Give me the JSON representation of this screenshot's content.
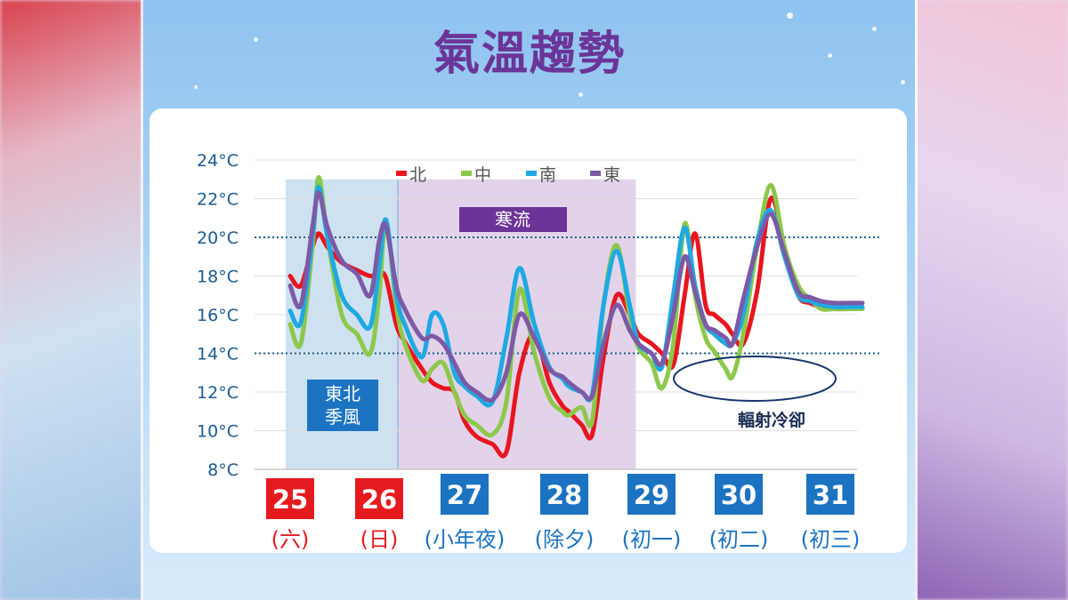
{
  "title": "氣溫趨勢",
  "colors": {
    "north": "#e8151f",
    "central": "#8cc84b",
    "south": "#1ea9e3",
    "east": "#7c5aa6",
    "date_box": "#1b73c1",
    "weekend_box": "#e51a1f",
    "monsoon_band": "#c6dcef",
    "cold_band": "#ddcbe6",
    "label_box": "#6d3397",
    "title": "#6b3598"
  },
  "chart_data": {
    "type": "line",
    "ylim": [
      8,
      24
    ],
    "ytick_values": [
      8,
      10,
      12,
      14,
      16,
      18,
      20,
      22,
      24
    ],
    "ytick_labels": [
      "8°C",
      "10°C",
      "12°C",
      "14°C",
      "16°C",
      "18°C",
      "20°C",
      "22°C",
      "24°C"
    ],
    "legend_position": "top-center",
    "reference_lines": [
      20,
      14
    ],
    "days": [
      {
        "num": "25",
        "label": "(六)",
        "weekend": true
      },
      {
        "num": "26",
        "label": "(日)",
        "weekend": true
      },
      {
        "num": "27",
        "label": "(小年夜)",
        "weekend": false
      },
      {
        "num": "28",
        "label": "(除夕)",
        "weekend": false
      },
      {
        "num": "29",
        "label": "(初一)",
        "weekend": false
      },
      {
        "num": "30",
        "label": "(初二)",
        "weekend": false
      },
      {
        "num": "31",
        "label": "(初三)",
        "weekend": false
      }
    ],
    "x": [
      0,
      0.12,
      0.25,
      0.32,
      0.42,
      0.58,
      0.75,
      0.9,
      1.0,
      1.08,
      1.2,
      1.3,
      1.5,
      1.62,
      1.75,
      1.88,
      2.0,
      2.12,
      2.28,
      2.42,
      2.55,
      2.7,
      2.85,
      2.98,
      3.05,
      3.2,
      3.32,
      3.45,
      3.6,
      3.75,
      3.85,
      4.0,
      4.12,
      4.25,
      4.38,
      4.5,
      4.62,
      4.72,
      4.85,
      4.93,
      5.05,
      5.2,
      5.35,
      5.5,
      5.65,
      5.78,
      5.9,
      6.05,
      6.2,
      6.35
    ],
    "series": [
      {
        "name": "北",
        "key": "north",
        "values": [
          18.0,
          17.5,
          19.5,
          20.2,
          19.5,
          18.7,
          18.3,
          18.0,
          18.1,
          17.9,
          15.5,
          14.6,
          13.2,
          12.5,
          12.2,
          12.0,
          10.5,
          9.7,
          9.3,
          8.9,
          13.0,
          15.0,
          12.5,
          11.3,
          11.0,
          10.3,
          9.8,
          13.8,
          17.0,
          16.0,
          15.0,
          14.5,
          14.0,
          13.4,
          17.0,
          20.2,
          16.5,
          16.0,
          15.5,
          15.0,
          14.5,
          17.2,
          22.0,
          19.5,
          17.0,
          16.6,
          16.4,
          16.3,
          16.3,
          16.3
        ]
      },
      {
        "name": "中",
        "key": "central",
        "values": [
          15.5,
          14.5,
          19.5,
          23.1,
          20.0,
          16.0,
          15.0,
          14.0,
          17.0,
          20.8,
          16.5,
          14.5,
          12.6,
          13.2,
          13.5,
          12.0,
          10.8,
          10.3,
          9.8,
          11.5,
          17.3,
          14.0,
          11.7,
          11.0,
          10.8,
          11.2,
          10.5,
          16.5,
          19.6,
          16.0,
          14.3,
          13.5,
          12.2,
          14.5,
          20.7,
          17.0,
          14.8,
          14.1,
          13.2,
          12.8,
          15.0,
          19.5,
          22.7,
          19.5,
          17.5,
          16.8,
          16.3,
          16.3,
          16.3,
          16.3
        ]
      },
      {
        "name": "南",
        "key": "south",
        "values": [
          16.2,
          15.6,
          20.0,
          22.6,
          20.0,
          17.0,
          16.0,
          15.4,
          18.5,
          20.9,
          17.0,
          15.5,
          13.8,
          16.0,
          15.5,
          13.0,
          12.3,
          11.8,
          11.5,
          14.8,
          18.4,
          15.5,
          13.3,
          12.7,
          12.3,
          12.0,
          11.9,
          16.5,
          19.3,
          16.5,
          14.5,
          14.0,
          13.3,
          17.0,
          20.5,
          17.5,
          15.5,
          15.0,
          14.5,
          14.5,
          16.0,
          19.8,
          21.4,
          19.0,
          17.0,
          16.7,
          16.5,
          16.4,
          16.4,
          16.4
        ]
      },
      {
        "name": "東",
        "key": "east",
        "values": [
          17.5,
          16.5,
          20.5,
          22.3,
          20.5,
          18.8,
          18.1,
          17.0,
          19.8,
          20.6,
          17.5,
          16.3,
          14.8,
          14.9,
          14.5,
          13.5,
          12.5,
          12.0,
          11.6,
          13.0,
          16.0,
          14.8,
          13.2,
          12.8,
          12.5,
          12.0,
          11.8,
          14.5,
          16.5,
          15.2,
          14.5,
          14.0,
          13.5,
          16.0,
          19.0,
          17.2,
          15.5,
          15.2,
          14.8,
          14.5,
          16.8,
          19.5,
          21.2,
          19.2,
          17.2,
          16.9,
          16.7,
          16.6,
          16.6,
          16.6
        ]
      }
    ],
    "bands": [
      {
        "label": "東北季風",
        "lines": [
          "東北",
          "季風"
        ],
        "x_start": -0.05,
        "x_end": 1.22
      },
      {
        "label": "寒流",
        "x_start": 1.22,
        "x_end": 3.82
      }
    ],
    "ellipse_label": "輻射冷卻"
  }
}
